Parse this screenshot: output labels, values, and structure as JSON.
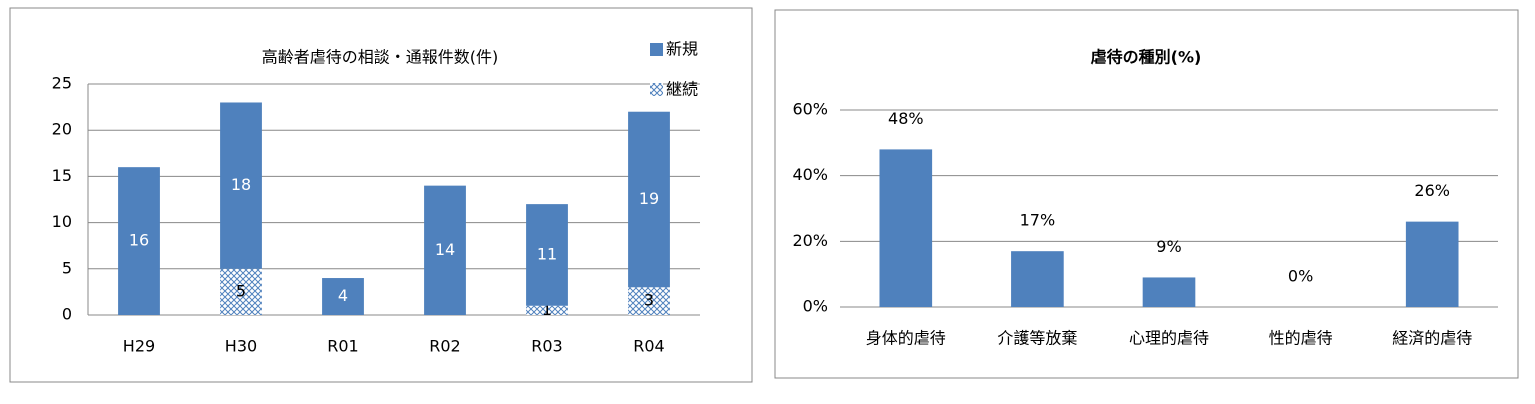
{
  "chart_data": [
    {
      "type": "stacked_bar",
      "title": "高齢者虐待の相談・通報件数(件)",
      "categories": [
        "H29",
        "H30",
        "R01",
        "R02",
        "R03",
        "R04"
      ],
      "series": [
        {
          "name": "新規",
          "color": "#4f81bd",
          "values": [
            16,
            18,
            4,
            14,
            11,
            19
          ]
        },
        {
          "name": "継続",
          "color": "hatch",
          "values": [
            null,
            5,
            null,
            null,
            1,
            3
          ]
        }
      ],
      "ylim": [
        0,
        25
      ],
      "yticks": [
        0,
        5,
        10,
        15,
        20,
        25
      ],
      "grid": true,
      "legend": "top-right"
    },
    {
      "type": "bar",
      "title": "虐待の種別(%)",
      "categories": [
        "身体的虐待",
        "介護等放棄",
        "心理的虐待",
        "性的虐待",
        "経済的虐待"
      ],
      "values": [
        48,
        17,
        9,
        0,
        26
      ],
      "value_labels": [
        "48%",
        "17%",
        "9%",
        "0%",
        "26%"
      ],
      "color": "#4f81bd",
      "ylim": [
        0,
        60
      ],
      "yticks": [
        {
          "value": 0,
          "label": "0%"
        },
        {
          "value": 20,
          "label": "20%"
        },
        {
          "value": 40,
          "label": "40%"
        },
        {
          "value": 60,
          "label": "60%"
        }
      ],
      "grid": true
    }
  ]
}
